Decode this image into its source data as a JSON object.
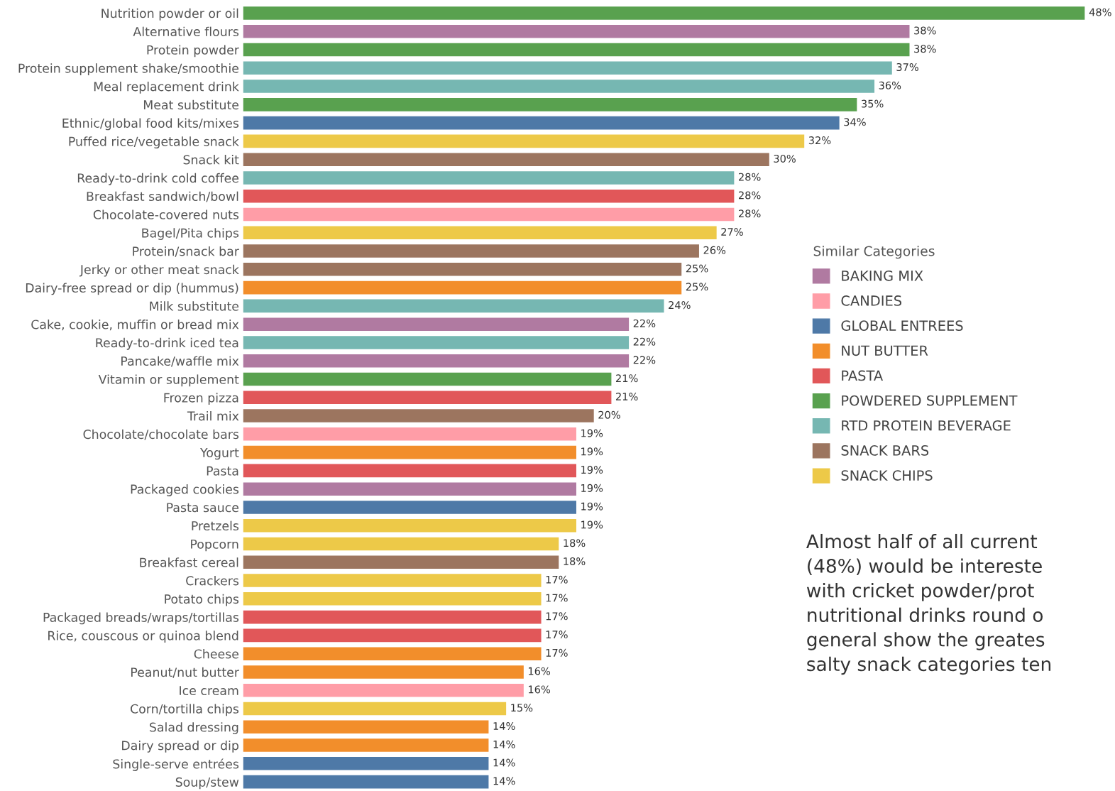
{
  "chart_data": {
    "type": "bar",
    "orientation": "horizontal",
    "categories": [
      "Nutrition powder or oil",
      "Alternative flours",
      "Protein powder",
      "Protein supplement shake/smoothie",
      "Meal replacement drink",
      "Meat substitute",
      "Ethnic/global food kits/mixes",
      "Puffed rice/vegetable snack",
      "Snack kit",
      "Ready-to-drink cold coffee",
      "Breakfast sandwich/bowl",
      "Chocolate-covered nuts",
      "Bagel/Pita chips",
      "Protein/snack bar",
      "Jerky or other meat snack",
      "Dairy-free spread or dip (hummus)",
      "Milk substitute",
      "Cake, cookie, muffin or bread mix",
      "Ready-to-drink iced tea",
      "Pancake/waffle mix",
      "Vitamin or supplement",
      "Frozen pizza",
      "Trail mix",
      "Chocolate/chocolate bars",
      "Yogurt",
      "Pasta",
      "Packaged cookies",
      "Pasta sauce",
      "Pretzels",
      "Popcorn",
      "Breakfast cereal",
      "Crackers",
      "Potato chips",
      "Packaged breads/wraps/tortillas",
      "Rice, couscous or quinoa blend",
      "Cheese",
      "Peanut/nut butter",
      "Ice cream",
      "Corn/tortilla chips",
      "Salad dressing",
      "Dairy spread or dip",
      "Single-serve entrées",
      "Soup/stew"
    ],
    "series": [
      {
        "name": "BAKING MIX",
        "color": "#b07aa1",
        "values": [
          null,
          38,
          null,
          null,
          null,
          null,
          null,
          null,
          null,
          null,
          null,
          null,
          null,
          null,
          null,
          null,
          null,
          22,
          null,
          22,
          null,
          null,
          null,
          null,
          null,
          null,
          19,
          null,
          null,
          null,
          null,
          null,
          null,
          null,
          null,
          null,
          null,
          null,
          null,
          null,
          null,
          null,
          null
        ],
        "value_labels": [
          null,
          "38%",
          null,
          null,
          null,
          null,
          null,
          null,
          null,
          null,
          null,
          null,
          null,
          null,
          null,
          null,
          null,
          "22%",
          null,
          "22%",
          null,
          null,
          null,
          null,
          null,
          null,
          "19%",
          null,
          null,
          null,
          null,
          null,
          null,
          null,
          null,
          null,
          null,
          null,
          null,
          null,
          null,
          null,
          null
        ]
      },
      {
        "name": "CANDIES",
        "color": "#ff9da7",
        "values": [
          null,
          null,
          null,
          null,
          null,
          null,
          null,
          null,
          null,
          null,
          null,
          28,
          null,
          null,
          null,
          null,
          null,
          null,
          null,
          null,
          null,
          null,
          null,
          19,
          null,
          null,
          null,
          null,
          null,
          null,
          null,
          null,
          null,
          null,
          null,
          null,
          null,
          16,
          null,
          null,
          null,
          null,
          null
        ],
        "value_labels": [
          null,
          null,
          null,
          null,
          null,
          null,
          null,
          null,
          null,
          null,
          null,
          "28%",
          null,
          null,
          null,
          null,
          null,
          null,
          null,
          null,
          null,
          null,
          null,
          "19%",
          null,
          null,
          null,
          null,
          null,
          null,
          null,
          null,
          null,
          null,
          null,
          null,
          null,
          "16%",
          null,
          null,
          null,
          null,
          null
        ]
      },
      {
        "name": "GLOBAL ENTREES",
        "color": "#4e79a7",
        "values": [
          null,
          null,
          null,
          null,
          null,
          null,
          34,
          null,
          null,
          null,
          null,
          null,
          null,
          null,
          null,
          null,
          null,
          null,
          null,
          null,
          null,
          null,
          null,
          null,
          null,
          null,
          null,
          19,
          null,
          null,
          null,
          null,
          null,
          null,
          null,
          null,
          null,
          null,
          null,
          null,
          null,
          14,
          14
        ],
        "value_labels": [
          null,
          null,
          null,
          null,
          null,
          null,
          "34%",
          null,
          null,
          null,
          null,
          null,
          null,
          null,
          null,
          null,
          null,
          null,
          null,
          null,
          null,
          null,
          null,
          null,
          null,
          null,
          null,
          "19%",
          null,
          null,
          null,
          null,
          null,
          null,
          null,
          null,
          null,
          null,
          null,
          null,
          null,
          "14%",
          "14%"
        ]
      },
      {
        "name": "NUT BUTTER",
        "color": "#f28e2b",
        "values": [
          null,
          null,
          null,
          null,
          null,
          null,
          null,
          null,
          null,
          null,
          null,
          null,
          null,
          null,
          null,
          25,
          null,
          null,
          null,
          null,
          null,
          null,
          null,
          null,
          19,
          null,
          null,
          null,
          null,
          null,
          null,
          null,
          null,
          null,
          null,
          17,
          16,
          null,
          null,
          14,
          14,
          null,
          null
        ],
        "value_labels": [
          null,
          null,
          null,
          null,
          null,
          null,
          null,
          null,
          null,
          null,
          null,
          null,
          null,
          null,
          null,
          "25%",
          null,
          null,
          null,
          null,
          null,
          null,
          null,
          null,
          "19%",
          null,
          null,
          null,
          null,
          null,
          null,
          null,
          null,
          null,
          null,
          "17%",
          "16%",
          null,
          null,
          "14%",
          "14%",
          null,
          null
        ]
      },
      {
        "name": "PASTA",
        "color": "#e15759",
        "values": [
          null,
          null,
          null,
          null,
          null,
          null,
          null,
          null,
          null,
          null,
          28,
          null,
          null,
          null,
          null,
          null,
          null,
          null,
          null,
          null,
          null,
          21,
          null,
          null,
          null,
          19,
          null,
          null,
          null,
          null,
          null,
          null,
          null,
          17,
          17,
          null,
          null,
          null,
          null,
          null,
          null,
          null,
          null
        ],
        "value_labels": [
          null,
          null,
          null,
          null,
          null,
          null,
          null,
          null,
          null,
          null,
          "28%",
          null,
          null,
          null,
          null,
          null,
          null,
          null,
          null,
          null,
          null,
          "21%",
          null,
          null,
          null,
          "19%",
          null,
          null,
          null,
          null,
          null,
          null,
          null,
          "17%",
          "17%",
          null,
          null,
          null,
          null,
          null,
          null,
          null,
          null
        ]
      },
      {
        "name": "POWDERED SUPPLEMENT",
        "color": "#59a14f",
        "values": [
          48,
          null,
          38,
          null,
          null,
          35,
          null,
          null,
          null,
          null,
          null,
          null,
          null,
          null,
          null,
          null,
          null,
          null,
          null,
          null,
          21,
          null,
          null,
          null,
          null,
          null,
          null,
          null,
          null,
          null,
          null,
          null,
          null,
          null,
          null,
          null,
          null,
          null,
          null,
          null,
          null,
          null,
          null
        ],
        "value_labels": [
          "48%",
          null,
          "38%",
          null,
          null,
          "35%",
          null,
          null,
          null,
          null,
          null,
          null,
          null,
          null,
          null,
          null,
          null,
          null,
          null,
          null,
          "21%",
          null,
          null,
          null,
          null,
          null,
          null,
          null,
          null,
          null,
          null,
          null,
          null,
          null,
          null,
          null,
          null,
          null,
          null,
          null,
          null,
          null,
          null
        ]
      },
      {
        "name": "RTD PROTEIN BEVERAGE",
        "color": "#76b7b2",
        "values": [
          null,
          null,
          null,
          37,
          36,
          null,
          null,
          null,
          null,
          28,
          null,
          null,
          null,
          null,
          null,
          null,
          24,
          null,
          22,
          null,
          null,
          null,
          null,
          null,
          null,
          null,
          null,
          null,
          null,
          null,
          null,
          null,
          null,
          null,
          null,
          null,
          null,
          null,
          null,
          null,
          null,
          null,
          null
        ],
        "value_labels": [
          null,
          null,
          null,
          "37%",
          "36%",
          null,
          null,
          null,
          null,
          "28%",
          null,
          null,
          null,
          null,
          null,
          null,
          "24%",
          null,
          "22%",
          null,
          null,
          null,
          null,
          null,
          null,
          null,
          null,
          null,
          null,
          null,
          null,
          null,
          null,
          null,
          null,
          null,
          null,
          null,
          null,
          null,
          null,
          null,
          null
        ]
      },
      {
        "name": "SNACK BARS",
        "color": "#9c755f",
        "values": [
          null,
          null,
          null,
          null,
          null,
          null,
          null,
          null,
          30,
          null,
          null,
          null,
          null,
          26,
          25,
          null,
          null,
          null,
          null,
          null,
          null,
          null,
          20,
          null,
          null,
          null,
          null,
          null,
          null,
          null,
          18,
          null,
          null,
          null,
          null,
          null,
          null,
          null,
          null,
          null,
          null,
          null,
          null
        ],
        "value_labels": [
          null,
          null,
          null,
          null,
          null,
          null,
          null,
          null,
          "30%",
          null,
          null,
          null,
          null,
          "26%",
          "25%",
          null,
          null,
          null,
          null,
          null,
          null,
          null,
          "20%",
          null,
          null,
          null,
          null,
          null,
          null,
          null,
          "18%",
          null,
          null,
          null,
          null,
          null,
          null,
          null,
          null,
          null,
          null,
          null,
          null
        ]
      },
      {
        "name": "SNACK CHIPS",
        "color": "#edc948",
        "values": [
          null,
          null,
          null,
          null,
          null,
          null,
          null,
          32,
          null,
          null,
          null,
          null,
          27,
          null,
          null,
          null,
          null,
          null,
          null,
          null,
          null,
          null,
          null,
          null,
          null,
          null,
          null,
          null,
          19,
          18,
          null,
          17,
          17,
          null,
          null,
          null,
          null,
          null,
          15,
          null,
          null,
          null,
          null
        ],
        "value_labels": [
          null,
          null,
          null,
          null,
          null,
          null,
          null,
          "32%",
          null,
          null,
          null,
          null,
          "27%",
          null,
          null,
          null,
          null,
          null,
          null,
          null,
          null,
          null,
          null,
          null,
          null,
          null,
          null,
          null,
          "19%",
          "18%",
          null,
          "17%",
          "17%",
          null,
          null,
          null,
          null,
          null,
          "15%",
          null,
          null,
          null,
          null
        ]
      }
    ],
    "grid": false,
    "legend": "right",
    "legend_title": "Similar Categories",
    "tick_labels": "y",
    "annotations": [
      "Almost half of all current\n(48%) would be intereste\nwith cricket powder/prot\nnutritional drinks round o\ngeneral show the greates\nsalty snack categories ten"
    ]
  }
}
